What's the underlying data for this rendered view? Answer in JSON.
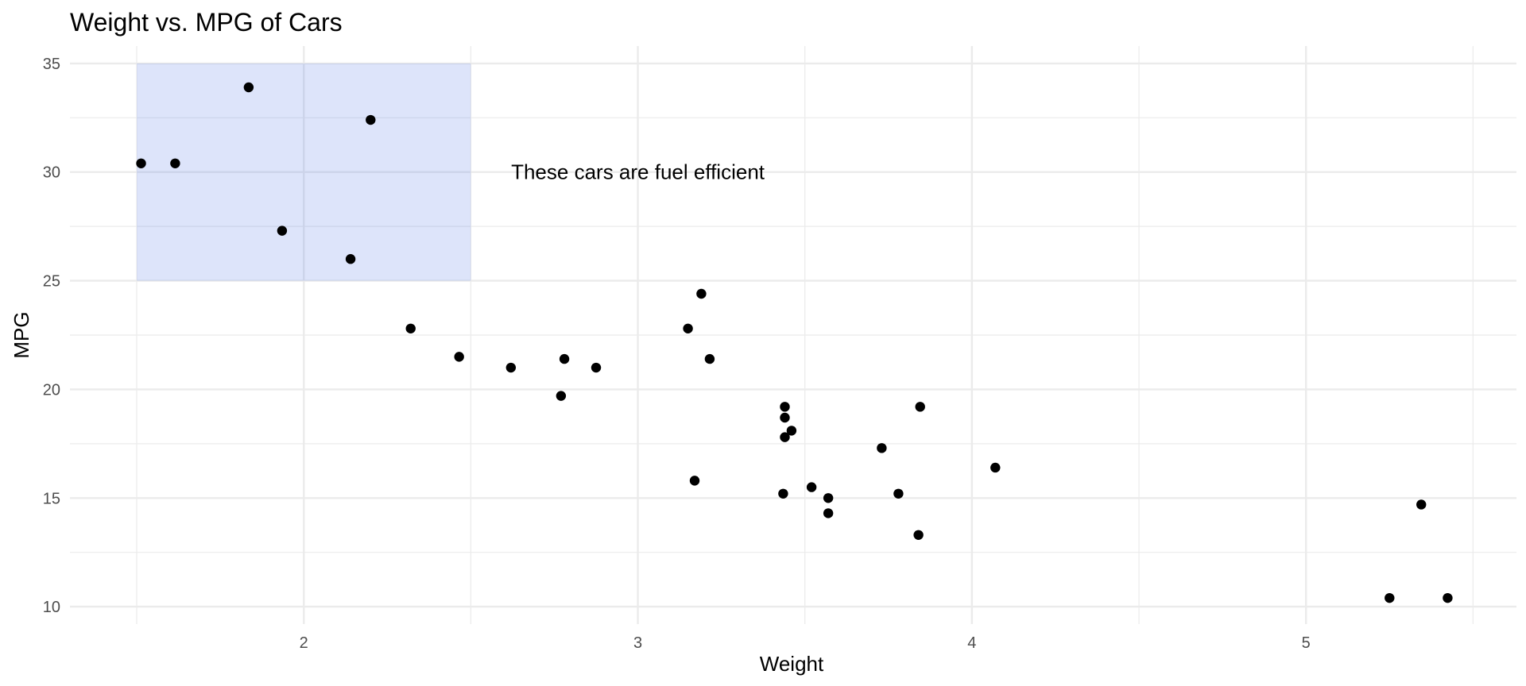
{
  "chart_data": {
    "type": "scatter",
    "title": "Weight vs. MPG of Cars",
    "xlabel": "Weight",
    "ylabel": "MPG",
    "xlim": [
      1.3,
      5.63
    ],
    "ylim": [
      9.2,
      35.8
    ],
    "x_ticks": [
      2,
      3,
      4,
      5
    ],
    "y_ticks": [
      10,
      15,
      20,
      25,
      30,
      35
    ],
    "x_minor_ticks": [
      1.5,
      2.5,
      3.5,
      4.5,
      5.5
    ],
    "y_minor_ticks": [
      12.5,
      17.5,
      22.5,
      27.5,
      32.5
    ],
    "grid": true,
    "highlight_region": {
      "x": [
        1.5,
        2.5
      ],
      "y": [
        25,
        35
      ],
      "color": "#4169e1",
      "opacity": 0.18
    },
    "annotation": {
      "text": "These cars are fuel efficient",
      "x": 3,
      "y": 30
    },
    "point_color": "#000000",
    "points": [
      {
        "x": 1.513,
        "y": 30.4
      },
      {
        "x": 1.615,
        "y": 30.4
      },
      {
        "x": 1.835,
        "y": 33.9
      },
      {
        "x": 1.935,
        "y": 27.3
      },
      {
        "x": 2.14,
        "y": 26.0
      },
      {
        "x": 2.2,
        "y": 32.4
      },
      {
        "x": 2.32,
        "y": 22.8
      },
      {
        "x": 2.465,
        "y": 21.5
      },
      {
        "x": 2.62,
        "y": 21.0
      },
      {
        "x": 2.77,
        "y": 19.7
      },
      {
        "x": 2.78,
        "y": 21.4
      },
      {
        "x": 2.875,
        "y": 21.0
      },
      {
        "x": 3.15,
        "y": 22.8
      },
      {
        "x": 3.17,
        "y": 15.8
      },
      {
        "x": 3.19,
        "y": 24.4
      },
      {
        "x": 3.215,
        "y": 21.4
      },
      {
        "x": 3.435,
        "y": 15.2
      },
      {
        "x": 3.44,
        "y": 18.7
      },
      {
        "x": 3.44,
        "y": 19.2
      },
      {
        "x": 3.44,
        "y": 17.8
      },
      {
        "x": 3.46,
        "y": 18.1
      },
      {
        "x": 3.52,
        "y": 15.5
      },
      {
        "x": 3.57,
        "y": 15.0
      },
      {
        "x": 3.57,
        "y": 14.3
      },
      {
        "x": 3.73,
        "y": 17.3
      },
      {
        "x": 3.78,
        "y": 15.2
      },
      {
        "x": 3.84,
        "y": 13.3
      },
      {
        "x": 3.845,
        "y": 19.2
      },
      {
        "x": 4.07,
        "y": 16.4
      },
      {
        "x": 5.25,
        "y": 10.4
      },
      {
        "x": 5.345,
        "y": 14.7
      },
      {
        "x": 5.424,
        "y": 10.4
      }
    ]
  }
}
